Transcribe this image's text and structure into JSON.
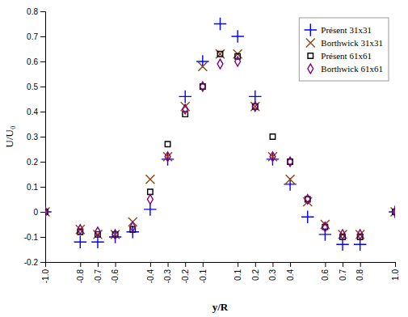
{
  "chart_data": {
    "type": "scatter",
    "xlabel": "y/R",
    "ylabel": "U/U₀",
    "x": [
      -1.0,
      -0.8,
      -0.7,
      -0.6,
      -0.5,
      -0.4,
      -0.3,
      -0.2,
      -0.1,
      0.0,
      0.1,
      0.2,
      0.3,
      0.4,
      0.5,
      0.6,
      0.7,
      0.8,
      1.0
    ],
    "series": [
      {
        "name": "Présent 31x31",
        "color": "#0000FF",
        "marker": "plus",
        "values": [
          0.0,
          -0.12,
          -0.12,
          -0.1,
          -0.08,
          0.01,
          0.21,
          0.46,
          0.6,
          0.75,
          0.7,
          0.46,
          0.21,
          0.11,
          -0.02,
          -0.09,
          -0.13,
          -0.13,
          0.0
        ]
      },
      {
        "name": "Borthwick 31x31",
        "color": "#8B4513",
        "marker": "x",
        "values": [
          0.0,
          -0.07,
          -0.09,
          -0.09,
          -0.04,
          0.13,
          0.22,
          0.42,
          0.58,
          0.63,
          0.63,
          0.42,
          0.22,
          0.13,
          0.04,
          -0.05,
          -0.09,
          -0.09,
          0.0
        ]
      },
      {
        "name": "Présent 61x61",
        "color": "#000000",
        "marker": "square",
        "values": [
          0.0,
          -0.08,
          -0.09,
          -0.09,
          -0.07,
          0.08,
          0.27,
          0.39,
          0.5,
          0.63,
          0.62,
          0.42,
          0.3,
          0.2,
          0.05,
          -0.06,
          -0.1,
          -0.1,
          0.0
        ]
      },
      {
        "name": "Borthwick 61x61",
        "color": "#800080",
        "marker": "diamond",
        "values": [
          0.0,
          -0.07,
          -0.08,
          -0.09,
          -0.06,
          0.05,
          0.22,
          0.41,
          0.5,
          0.59,
          0.6,
          0.42,
          0.22,
          0.2,
          0.05,
          -0.06,
          -0.09,
          -0.09,
          0.0
        ]
      }
    ],
    "xlim": [
      -1.0,
      1.0
    ],
    "ylim": [
      -0.2,
      0.8
    ],
    "xticks": [
      {
        "value": -1.0,
        "label": "-1.0"
      },
      -0.8,
      -0.7,
      -0.6,
      -0.4,
      -0.3,
      -0.2,
      -0.1,
      0.1,
      0.2,
      0.3,
      0.4,
      0.6,
      0.7,
      0.8,
      {
        "value": 1.0,
        "label": "1.0"
      }
    ],
    "yticks": [
      -0.2,
      -0.1,
      0,
      0.1,
      0.2,
      0.3,
      0.4,
      0.5,
      0.6,
      0.7,
      0.8
    ],
    "grid": false,
    "legend": "upper right"
  }
}
